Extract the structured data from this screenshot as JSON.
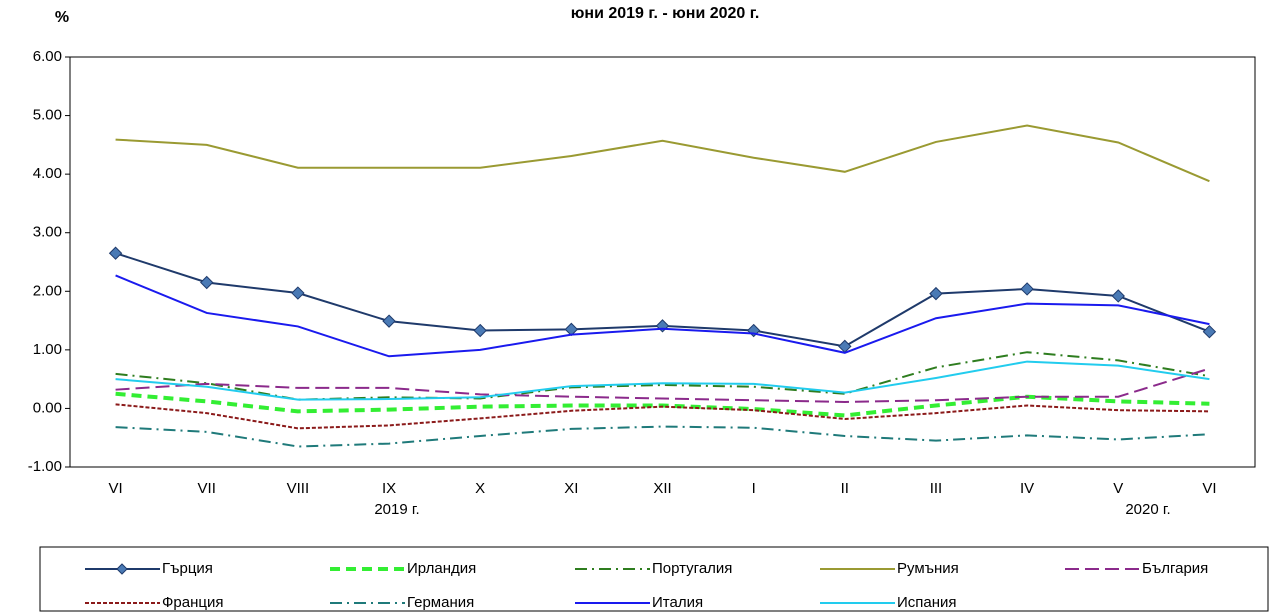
{
  "chart_data": {
    "type": "line",
    "title": "юни 2019 г. - юни 2020 г.",
    "y_label": "%",
    "year_labels": [
      "2019 г.",
      "2020 г."
    ],
    "categories": [
      "VI",
      "VII",
      "VIII",
      "IX",
      "X",
      "XI",
      "XII",
      "I",
      "II",
      "III",
      "IV",
      "V",
      "VI"
    ],
    "ylim": [
      -1,
      6
    ],
    "yticks": [
      {
        "value": -1,
        "label": "-1.00"
      },
      {
        "value": 0,
        "label": "0.00"
      },
      {
        "value": 1,
        "label": "1.00"
      },
      {
        "value": 2,
        "label": "2.00"
      },
      {
        "value": 3,
        "label": "3.00"
      },
      {
        "value": 4,
        "label": "4.00"
      },
      {
        "value": 5,
        "label": "5.00"
      },
      {
        "value": 6,
        "label": "6.00"
      }
    ],
    "grid": false,
    "legend": "bottom",
    "series": [
      {
        "name": "Гърция",
        "color": "#1f3a6b",
        "dash": "solid",
        "marker": "diamond",
        "values": [
          2.65,
          2.15,
          1.97,
          1.49,
          1.33,
          1.35,
          1.41,
          1.33,
          1.06,
          1.96,
          2.04,
          1.92,
          1.31
        ]
      },
      {
        "name": "Ирландия",
        "color": "#33ee33",
        "dash": "bold-dashed",
        "values": [
          0.25,
          0.12,
          -0.05,
          -0.02,
          0.03,
          0.05,
          0.05,
          -0.01,
          -0.12,
          0.05,
          0.2,
          0.12,
          0.08
        ]
      },
      {
        "name": "Португалия",
        "color": "#2e7d1f",
        "dash": "dashdot",
        "values": [
          0.59,
          0.43,
          0.15,
          0.19,
          0.17,
          0.36,
          0.4,
          0.37,
          0.25,
          0.7,
          0.96,
          0.82,
          0.55
        ]
      },
      {
        "name": "Румъния",
        "color": "#9a9a32",
        "dash": "solid",
        "values": [
          4.59,
          4.5,
          4.11,
          4.11,
          4.11,
          4.31,
          4.57,
          4.28,
          4.04,
          4.55,
          4.83,
          4.54,
          3.88
        ]
      },
      {
        "name": "България",
        "color": "#8b2a8b",
        "dash": "longdash",
        "values": [
          0.32,
          0.42,
          0.35,
          0.35,
          0.24,
          0.2,
          0.17,
          0.14,
          0.11,
          0.14,
          0.2,
          0.2,
          0.68
        ]
      },
      {
        "name": "Франция",
        "color": "#8b1a1a",
        "dash": "dotted",
        "values": [
          0.07,
          -0.08,
          -0.34,
          -0.29,
          -0.17,
          -0.04,
          0.03,
          -0.03,
          -0.18,
          -0.08,
          0.05,
          -0.03,
          -0.05
        ]
      },
      {
        "name": "Германия",
        "color": "#1f7a7a",
        "dash": "dashdot",
        "values": [
          -0.32,
          -0.4,
          -0.65,
          -0.6,
          -0.47,
          -0.35,
          -0.31,
          -0.33,
          -0.47,
          -0.55,
          -0.46,
          -0.53,
          -0.44
        ]
      },
      {
        "name": "Италия",
        "color": "#1a1aee",
        "dash": "solid",
        "values": [
          2.27,
          1.63,
          1.4,
          0.89,
          1.0,
          1.26,
          1.36,
          1.28,
          0.95,
          1.54,
          1.79,
          1.76,
          1.44
        ]
      },
      {
        "name": "Испания",
        "color": "#22ccee",
        "dash": "solid",
        "values": [
          0.5,
          0.37,
          0.15,
          0.16,
          0.19,
          0.38,
          0.43,
          0.42,
          0.27,
          0.52,
          0.8,
          0.73,
          0.5
        ]
      }
    ]
  }
}
